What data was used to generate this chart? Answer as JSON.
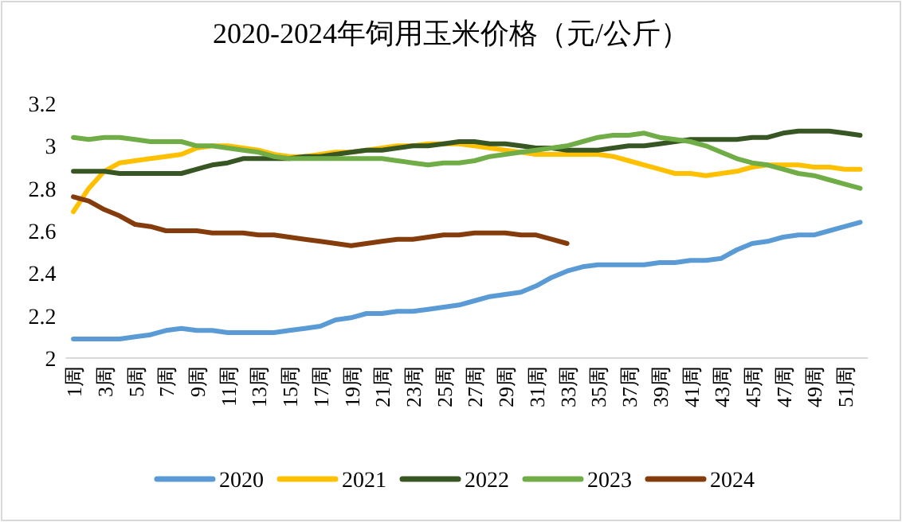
{
  "chart_data": {
    "type": "line",
    "title": "2020-2024年饲用玉米价格（元/公斤）",
    "categories": [
      "1周",
      null,
      "3周",
      null,
      "5周",
      null,
      "7周",
      null,
      "9周",
      null,
      "11周",
      null,
      "13周",
      null,
      "15周",
      null,
      "17周",
      null,
      "19周",
      null,
      "21周",
      null,
      "23周",
      null,
      "25周",
      null,
      "27周",
      null,
      "29周",
      null,
      "31周",
      null,
      "33周",
      null,
      "35周",
      null,
      "37周",
      null,
      "39周",
      null,
      "41周",
      null,
      "43周",
      null,
      "45周",
      null,
      "47周",
      null,
      "49周",
      null,
      "51周",
      null
    ],
    "ylim": [
      2,
      3.2
    ],
    "yticks": [
      2,
      2.2,
      2.4,
      2.6,
      2.8,
      3,
      3.2
    ],
    "grid": false,
    "legend": "bottom",
    "marker": "none",
    "line_style": "solid",
    "series": [
      {
        "name": "2020",
        "color": "#5b9bd5",
        "values": [
          2.09,
          2.09,
          2.09,
          2.09,
          2.1,
          2.11,
          2.13,
          2.14,
          2.13,
          2.13,
          2.12,
          2.12,
          2.12,
          2.12,
          2.13,
          2.14,
          2.15,
          2.18,
          2.19,
          2.21,
          2.21,
          2.22,
          2.22,
          2.23,
          2.24,
          2.25,
          2.27,
          2.29,
          2.3,
          2.31,
          2.34,
          2.38,
          2.41,
          2.43,
          2.44,
          2.44,
          2.44,
          2.44,
          2.45,
          2.45,
          2.46,
          2.46,
          2.47,
          2.51,
          2.54,
          2.55,
          2.57,
          2.58,
          2.58,
          2.6,
          2.62,
          2.64
        ]
      },
      {
        "name": "2021",
        "color": "#ffc000",
        "values": [
          2.69,
          2.8,
          2.88,
          2.92,
          2.93,
          2.94,
          2.95,
          2.96,
          2.99,
          3.0,
          3.0,
          2.99,
          2.98,
          2.96,
          2.95,
          2.95,
          2.96,
          2.97,
          2.97,
          2.98,
          2.99,
          3.0,
          3.0,
          3.01,
          3.01,
          3.01,
          3.0,
          2.99,
          2.98,
          2.97,
          2.96,
          2.96,
          2.96,
          2.96,
          2.96,
          2.95,
          2.93,
          2.91,
          2.89,
          2.87,
          2.87,
          2.86,
          2.87,
          2.88,
          2.9,
          2.91,
          2.91,
          2.91,
          2.9,
          2.9,
          2.89,
          2.89
        ]
      },
      {
        "name": "2022",
        "color": "#375623",
        "values": [
          2.88,
          2.88,
          2.88,
          2.87,
          2.87,
          2.87,
          2.87,
          2.87,
          2.89,
          2.91,
          2.92,
          2.94,
          2.94,
          2.94,
          2.94,
          2.95,
          2.95,
          2.96,
          2.97,
          2.98,
          2.98,
          2.99,
          3.0,
          3.0,
          3.01,
          3.02,
          3.02,
          3.01,
          3.01,
          3.0,
          2.99,
          2.99,
          2.98,
          2.98,
          2.98,
          2.99,
          3.0,
          3.0,
          3.01,
          3.02,
          3.03,
          3.03,
          3.03,
          3.03,
          3.04,
          3.04,
          3.06,
          3.07,
          3.07,
          3.07,
          3.06,
          3.05
        ]
      },
      {
        "name": "2023",
        "color": "#70ad47",
        "values": [
          3.04,
          3.03,
          3.04,
          3.04,
          3.03,
          3.02,
          3.02,
          3.02,
          3.0,
          3.0,
          2.99,
          2.98,
          2.97,
          2.95,
          2.94,
          2.94,
          2.94,
          2.94,
          2.94,
          2.94,
          2.94,
          2.93,
          2.92,
          2.91,
          2.92,
          2.92,
          2.93,
          2.95,
          2.96,
          2.97,
          2.98,
          2.99,
          3.0,
          3.02,
          3.04,
          3.05,
          3.05,
          3.06,
          3.04,
          3.03,
          3.02,
          3.0,
          2.97,
          2.94,
          2.92,
          2.91,
          2.89,
          2.87,
          2.86,
          2.84,
          2.82,
          2.8
        ]
      },
      {
        "name": "2024",
        "color": "#843c0c",
        "values": [
          2.76,
          2.74,
          2.7,
          2.67,
          2.63,
          2.62,
          2.6,
          2.6,
          2.6,
          2.59,
          2.59,
          2.59,
          2.58,
          2.58,
          2.57,
          2.56,
          2.55,
          2.54,
          2.53,
          2.54,
          2.55,
          2.56,
          2.56,
          2.57,
          2.58,
          2.58,
          2.59,
          2.59,
          2.59,
          2.58,
          2.58,
          2.56,
          2.54,
          null,
          null,
          null,
          null,
          null,
          null,
          null,
          null,
          null,
          null,
          null,
          null,
          null,
          null,
          null,
          null,
          null,
          null,
          null
        ]
      }
    ]
  }
}
